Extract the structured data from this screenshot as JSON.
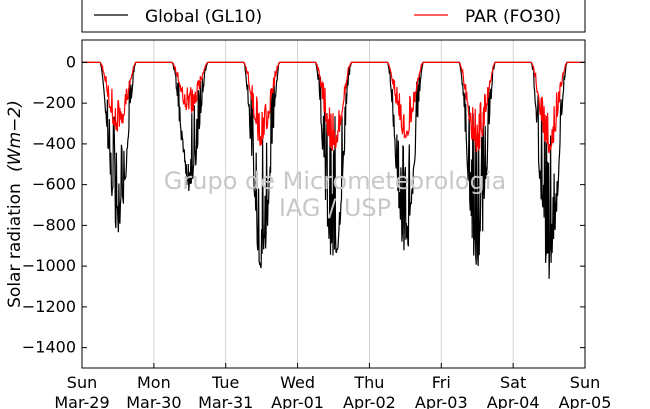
{
  "chart_data": {
    "type": "line",
    "ylabel": "Solar radiation",
    "ylabel_unit": "(Wm−2)",
    "ylim": [
      -1500,
      110
    ],
    "yticks": [
      0,
      -200,
      -400,
      -600,
      -800,
      -1000,
      -1200,
      -1400
    ],
    "xlim": [
      0,
      7
    ],
    "x_unit": "days since Sun Mar-29 00:00",
    "xticks": [
      {
        "day": "Sun",
        "date": "Mar-29"
      },
      {
        "day": "Mon",
        "date": "Mar-30"
      },
      {
        "day": "Tue",
        "date": "Mar-31"
      },
      {
        "day": "Wed",
        "date": "Apr-01"
      },
      {
        "day": "Thu",
        "date": "Apr-02"
      },
      {
        "day": "Fri",
        "date": "Apr-03"
      },
      {
        "day": "Sat",
        "date": "Apr-04"
      },
      {
        "day": "Sun",
        "date": "Apr-05"
      }
    ],
    "grid": "vertical",
    "legend_position": "top",
    "watermark": [
      "Grupo de Micrometeorologia",
      "IAG / USP"
    ],
    "series": [
      {
        "name": "Global (GL10)",
        "color": "#000000",
        "daily_minimum": [
          -860,
          -640,
          -1020,
          -1050,
          -970,
          -1040,
          -1080
        ]
      },
      {
        "name": "PAR (FO30)",
        "color": "#ff0000",
        "daily_minimum": [
          -360,
          -260,
          -420,
          -440,
          -380,
          -450,
          -450
        ]
      }
    ]
  }
}
